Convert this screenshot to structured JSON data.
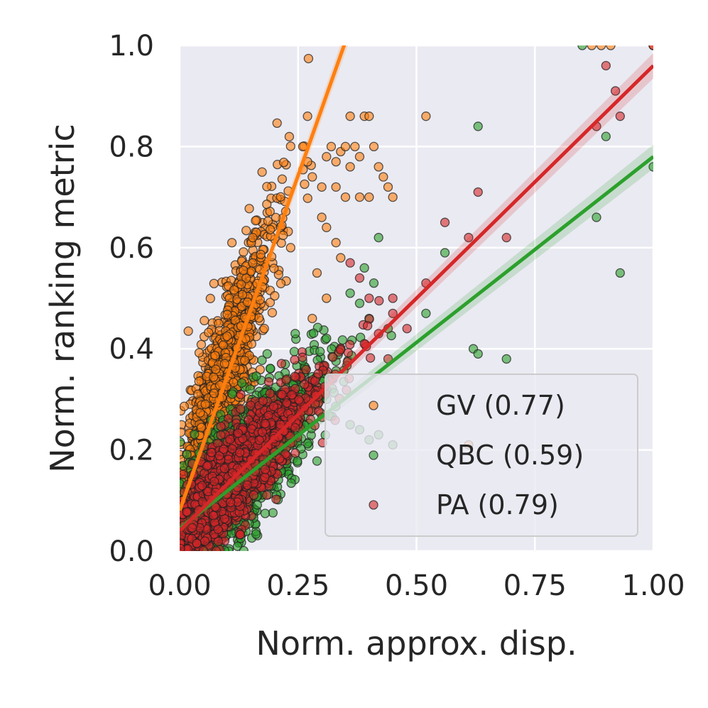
{
  "chart_data": {
    "type": "scatter",
    "title": "",
    "xlabel": "Norm. approx. disp.",
    "ylabel": "Norm. ranking metric",
    "xlim": [
      0,
      1
    ],
    "ylim": [
      0,
      1
    ],
    "xticks": [
      "0.00",
      "0.25",
      "0.50",
      "0.75",
      "1.00"
    ],
    "yticks": [
      "0.0",
      "0.2",
      "0.4",
      "0.6",
      "0.8",
      "1.0"
    ],
    "xtick_values": [
      0,
      0.25,
      0.5,
      0.75,
      1.0
    ],
    "ytick_values": [
      0,
      0.2,
      0.4,
      0.6,
      0.8,
      1.0
    ],
    "grid": true,
    "legend_position": "lower-right",
    "series": [
      {
        "name": "GV",
        "legend_label": "GV (0.77)",
        "correlation": 0.77,
        "color": "#ff7f0e",
        "fit_intercept": 0.08,
        "fit_slope": 2.65,
        "cluster": {
          "count": 1500,
          "x_mean": 0.08,
          "x_sd": 0.055,
          "x_max": 0.28,
          "y_slope": 2.8,
          "y_intercept": 0.07,
          "y_noise": 0.08
        },
        "outliers": [
          [
            0.26,
            0.8
          ],
          [
            0.27,
            0.77
          ],
          [
            0.28,
            0.74
          ],
          [
            0.3,
            0.72
          ],
          [
            0.31,
            0.78
          ],
          [
            0.32,
            0.8
          ],
          [
            0.33,
            0.77
          ],
          [
            0.34,
            0.79
          ],
          [
            0.35,
            0.8
          ],
          [
            0.36,
            0.76
          ],
          [
            0.37,
            0.8
          ],
          [
            0.38,
            0.78
          ],
          [
            0.39,
            0.86
          ],
          [
            0.4,
            0.86
          ],
          [
            0.41,
            0.8
          ],
          [
            0.42,
            0.76
          ],
          [
            0.43,
            0.74
          ],
          [
            0.44,
            0.72
          ],
          [
            0.45,
            0.7
          ],
          [
            0.27,
            0.86
          ],
          [
            0.36,
            0.86
          ],
          [
            0.52,
            0.86
          ],
          [
            0.33,
            0.72
          ],
          [
            0.35,
            0.7
          ],
          [
            0.38,
            0.7
          ],
          [
            0.4,
            0.7
          ],
          [
            0.3,
            0.66
          ],
          [
            0.31,
            0.64
          ],
          [
            0.33,
            0.61
          ],
          [
            0.34,
            0.58
          ],
          [
            0.29,
            0.55
          ],
          [
            0.31,
            0.5
          ],
          [
            0.28,
            0.46
          ],
          [
            0.61,
            0.21
          ],
          [
            0.87,
            1.0
          ],
          [
            0.89,
            1.0
          ],
          [
            0.91,
            1.0
          ],
          [
            1.0,
            1.0
          ]
        ]
      },
      {
        "name": "QBC",
        "legend_label": "QBC (0.59)",
        "correlation": 0.59,
        "color": "#2ca02c",
        "fit_intercept": 0.045,
        "fit_slope": 0.735,
        "cluster": {
          "count": 1500,
          "x_mean": 0.13,
          "x_sd": 0.075,
          "x_max": 0.45,
          "y_slope": 0.95,
          "y_intercept": 0.04,
          "y_noise": 0.06
        },
        "outliers": [
          [
            0.63,
            0.84
          ],
          [
            0.56,
            0.59
          ],
          [
            0.52,
            0.47
          ],
          [
            0.62,
            0.4
          ],
          [
            0.63,
            0.39
          ],
          [
            0.69,
            0.38
          ],
          [
            0.88,
            0.66
          ],
          [
            0.9,
            0.82
          ],
          [
            0.93,
            0.55
          ],
          [
            1.0,
            0.76
          ],
          [
            0.42,
            0.62
          ],
          [
            0.36,
            0.51
          ],
          [
            0.38,
            0.49
          ],
          [
            0.4,
            0.46
          ],
          [
            0.44,
            0.44
          ],
          [
            0.34,
            0.4
          ],
          [
            0.36,
            0.25
          ],
          [
            0.38,
            0.24
          ],
          [
            0.4,
            0.22
          ],
          [
            0.42,
            0.23
          ],
          [
            0.45,
            0.21
          ],
          [
            0.39,
            0.56
          ],
          [
            0.41,
            0.53
          ],
          [
            0.85,
            1.0
          ]
        ]
      },
      {
        "name": "PA",
        "legend_label": "PA (0.79)",
        "correlation": 0.79,
        "color": "#d62728",
        "fit_intercept": 0.04,
        "fit_slope": 0.92,
        "cluster": {
          "count": 1600,
          "x_mean": 0.12,
          "x_sd": 0.075,
          "x_max": 0.45,
          "y_slope": 0.95,
          "y_intercept": 0.04,
          "y_noise": 0.045
        },
        "outliers": [
          [
            0.56,
            0.65
          ],
          [
            0.61,
            0.62
          ],
          [
            0.63,
            0.71
          ],
          [
            0.69,
            0.62
          ],
          [
            0.52,
            0.53
          ],
          [
            0.45,
            0.5
          ],
          [
            0.39,
            0.41
          ],
          [
            0.42,
            0.43
          ],
          [
            0.44,
            0.38
          ],
          [
            0.36,
            0.57
          ],
          [
            0.38,
            0.54
          ],
          [
            0.4,
            0.5
          ],
          [
            0.88,
            0.84
          ],
          [
            0.9,
            0.96
          ],
          [
            0.92,
            0.91
          ],
          [
            0.93,
            0.86
          ],
          [
            1.0,
            1.0
          ],
          [
            0.45,
            0.47
          ],
          [
            0.48,
            0.44
          ]
        ]
      }
    ]
  }
}
